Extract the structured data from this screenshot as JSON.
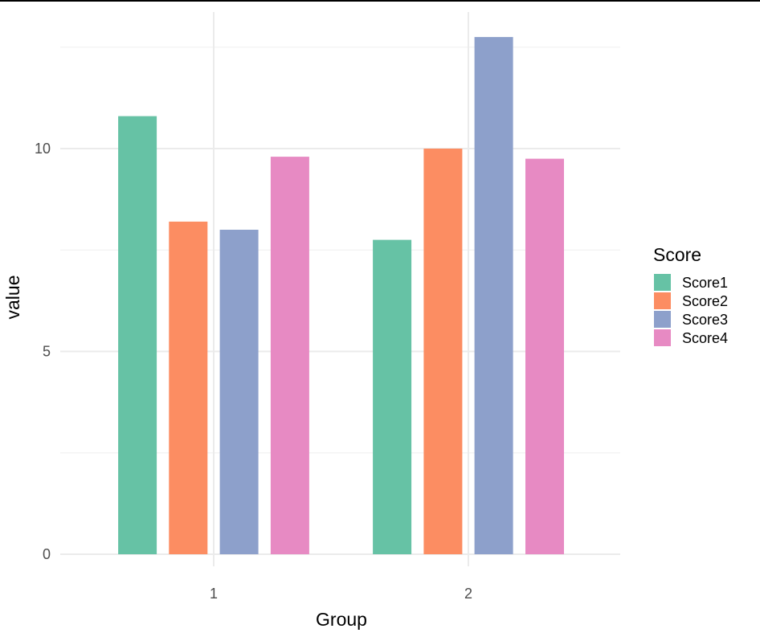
{
  "chart_data": {
    "type": "bar",
    "categories": [
      "1",
      "2"
    ],
    "series": [
      {
        "name": "Score1",
        "values": [
          10.8,
          7.75
        ]
      },
      {
        "name": "Score2",
        "values": [
          8.2,
          10.0
        ]
      },
      {
        "name": "Score3",
        "values": [
          8.0,
          12.75
        ]
      },
      {
        "name": "Score4",
        "values": [
          9.8,
          9.75
        ]
      }
    ],
    "colors": [
      "#66c2a5",
      "#fc8d62",
      "#8da0cb",
      "#e78ac3"
    ],
    "title": "",
    "xlabel": "Group",
    "ylabel": "value",
    "ylim": [
      0,
      12.75
    ],
    "yticks": [
      0,
      5,
      10
    ],
    "yticks_minor": [
      2.5,
      7.5,
      12.5
    ],
    "grid": true,
    "legend": {
      "title": "Score",
      "position": "right"
    }
  }
}
